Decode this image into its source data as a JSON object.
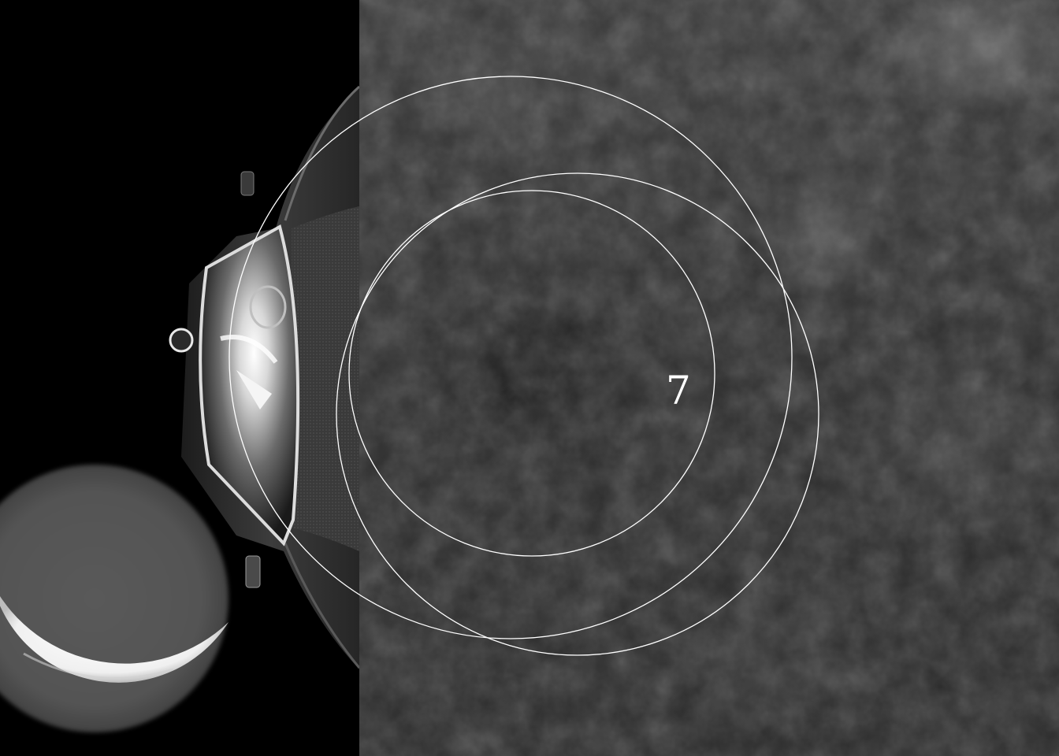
{
  "page_number": "7",
  "colors": {
    "background": "#000000",
    "ring_stroke": "#ffffff",
    "texture_base": "#2e2e2e",
    "number_color": "#ffffff"
  }
}
